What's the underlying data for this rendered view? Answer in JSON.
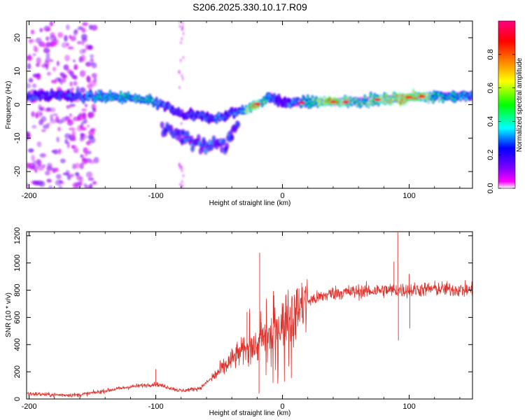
{
  "title": "S206.2025.330.10.17.R09",
  "chart_data": [
    {
      "type": "heatmap",
      "xlabel": "Height of straight line (km)",
      "ylabel": "Frequency (Hz)",
      "xlim": [
        -202,
        150
      ],
      "ylim": [
        -25,
        25
      ],
      "xticks": [
        -200,
        -100,
        0,
        100
      ],
      "yticks": [
        -20,
        -10,
        0,
        10,
        20
      ],
      "colorbar": {
        "label": "Normalized spectral amplitude",
        "range": [
          0,
          1
        ],
        "ticks": [
          0.0,
          0.2,
          0.4,
          0.6,
          0.8
        ],
        "colormap": [
          "#ff00ff",
          "#8000ff",
          "#0000ff",
          "#00ffff",
          "#00ff00",
          "#ffff00",
          "#ff8000",
          "#ff0000",
          "#ff0080"
        ]
      },
      "ridge": {
        "description_points": [
          {
            "x": -200,
            "y": 2.5,
            "amp": 0.3
          },
          {
            "x": -180,
            "y": 2.8,
            "amp": 0.25
          },
          {
            "x": -160,
            "y": 2.5,
            "amp": 0.3
          },
          {
            "x": -140,
            "y": 2.3,
            "amp": 0.42
          },
          {
            "x": -120,
            "y": 2.0,
            "amp": 0.45
          },
          {
            "x": -105,
            "y": 1.0,
            "amp": 0.5
          },
          {
            "x": -95,
            "y": 0.0,
            "amp": 0.3
          },
          {
            "x": -80,
            "y": -3.0,
            "amp": 0.25
          },
          {
            "x": -65,
            "y": -3.5,
            "amp": 0.3
          },
          {
            "x": -50,
            "y": -4.0,
            "amp": 0.3
          },
          {
            "x": -35,
            "y": -2.0,
            "amp": 0.3
          },
          {
            "x": -20,
            "y": 0.0,
            "amp": 0.85
          },
          {
            "x": -10,
            "y": 2.5,
            "amp": 0.3
          },
          {
            "x": 0,
            "y": 0.5,
            "amp": 0.25
          },
          {
            "x": 20,
            "y": 0.8,
            "amp": 0.45
          },
          {
            "x": 40,
            "y": 0.8,
            "amp": 0.9
          },
          {
            "x": 60,
            "y": 1.0,
            "amp": 0.5
          },
          {
            "x": 80,
            "y": 1.5,
            "amp": 0.65
          },
          {
            "x": 100,
            "y": 2.2,
            "amp": 0.9
          },
          {
            "x": 120,
            "y": 2.5,
            "amp": 0.55
          },
          {
            "x": 150,
            "y": 2.5,
            "amp": 0.35
          }
        ],
        "lower_branch": [
          {
            "x": -85,
            "y": -8.0,
            "amp": 0.25
          },
          {
            "x": -70,
            "y": -11.5,
            "amp": 0.3
          },
          {
            "x": -55,
            "y": -12.0,
            "amp": 0.3
          },
          {
            "x": -45,
            "y": -12.5,
            "amp": 0.3
          }
        ]
      }
    },
    {
      "type": "line",
      "xlabel": "Height of straight line (km)",
      "ylabel": "SNR (10 * v/v)",
      "xlim": [
        -202,
        150
      ],
      "ylim": [
        0,
        1230
      ],
      "xticks": [
        -200,
        -100,
        0,
        100
      ],
      "yticks": [
        0,
        200,
        400,
        600,
        800,
        1000,
        1200
      ],
      "color": "#e0302a",
      "trend": [
        {
          "x": -202,
          "y": 40
        },
        {
          "x": -180,
          "y": 30
        },
        {
          "x": -160,
          "y": 30
        },
        {
          "x": -140,
          "y": 60
        },
        {
          "x": -120,
          "y": 90
        },
        {
          "x": -100,
          "y": 110
        },
        {
          "x": -80,
          "y": 60
        },
        {
          "x": -65,
          "y": 80
        },
        {
          "x": -50,
          "y": 200
        },
        {
          "x": -35,
          "y": 330
        },
        {
          "x": -20,
          "y": 400
        },
        {
          "x": -10,
          "y": 470
        },
        {
          "x": 0,
          "y": 560
        },
        {
          "x": 10,
          "y": 640
        },
        {
          "x": 20,
          "y": 720
        },
        {
          "x": 40,
          "y": 780
        },
        {
          "x": 60,
          "y": 790
        },
        {
          "x": 80,
          "y": 800
        },
        {
          "x": 100,
          "y": 800
        },
        {
          "x": 120,
          "y": 810
        },
        {
          "x": 150,
          "y": 800
        }
      ],
      "spikes": [
        {
          "x": -28,
          "y": 640
        },
        {
          "x": -18,
          "y": 1075
        },
        {
          "x": -18.5,
          "y": 40
        },
        {
          "x": 88,
          "y": 1010
        },
        {
          "x": 91,
          "y": 1230
        },
        {
          "x": 91.5,
          "y": 430
        },
        {
          "x": 100,
          "y": 920
        },
        {
          "x": 100.5,
          "y": 520
        },
        {
          "x": -100,
          "y": 220
        }
      ]
    }
  ]
}
